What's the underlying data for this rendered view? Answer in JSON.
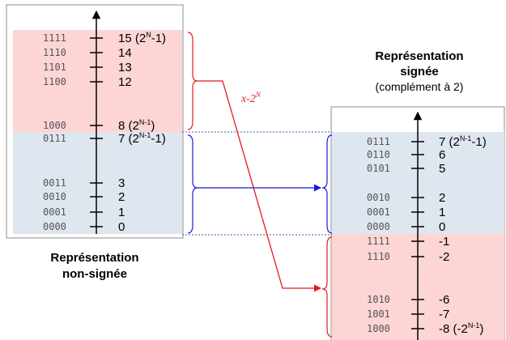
{
  "unsigned": {
    "title_line1": "Représentation",
    "title_line2": "non-signée",
    "negative_rows": [
      {
        "bits": "1111",
        "value": "15 (2",
        "sup": "N",
        "tail": "-1)"
      },
      {
        "bits": "1110",
        "value": "14",
        "sup": "",
        "tail": ""
      },
      {
        "bits": "1101",
        "value": "13",
        "sup": "",
        "tail": ""
      },
      {
        "bits": "1100",
        "value": "12",
        "sup": "",
        "tail": ""
      },
      {
        "bits": "1000",
        "value": "8 (2",
        "sup": "N-1",
        "tail": ")"
      }
    ],
    "positive_rows": [
      {
        "bits": "0111",
        "value": "7 (2",
        "sup": "N-1",
        "tail": "-1)"
      },
      {
        "bits": "0011",
        "value": "3",
        "sup": "",
        "tail": ""
      },
      {
        "bits": "0010",
        "value": "2",
        "sup": "",
        "tail": ""
      },
      {
        "bits": "0001",
        "value": "1",
        "sup": "",
        "tail": ""
      },
      {
        "bits": "0000",
        "value": "0",
        "sup": "",
        "tail": ""
      }
    ]
  },
  "signed": {
    "title_line1": "Représentation",
    "title_line2": "signée",
    "subtitle": "(complément à 2)",
    "positive_rows": [
      {
        "bits": "0111",
        "value": "7 (2",
        "sup": "N-1",
        "tail": "-1)"
      },
      {
        "bits": "0110",
        "value": "6",
        "sup": "",
        "tail": ""
      },
      {
        "bits": "0101",
        "value": "5",
        "sup": "",
        "tail": ""
      },
      {
        "bits": "0010",
        "value": "2",
        "sup": "",
        "tail": ""
      },
      {
        "bits": "0001",
        "value": "1",
        "sup": "",
        "tail": ""
      },
      {
        "bits": "0000",
        "value": "0",
        "sup": "",
        "tail": ""
      }
    ],
    "negative_rows": [
      {
        "bits": "1111",
        "value": "-1",
        "sup": "",
        "tail": ""
      },
      {
        "bits": "1110",
        "value": "-2",
        "sup": "",
        "tail": ""
      },
      {
        "bits": "1010",
        "value": "-6",
        "sup": "",
        "tail": ""
      },
      {
        "bits": "1001",
        "value": "-7",
        "sup": "",
        "tail": ""
      },
      {
        "bits": "1000",
        "value": "-8 (-2",
        "sup": "N-1",
        "tail": ")"
      }
    ]
  },
  "mapping": {
    "formula": "x-2",
    "formula_sup": "N"
  },
  "colors": {
    "negative_fill": "#fdd5d5",
    "positive_fill": "#dee6ef",
    "red_arrow": "#e8171c",
    "blue_arrow": "#1a1adc",
    "dotted_line": "#3b5fa8",
    "frame": "#8c8c8c"
  }
}
